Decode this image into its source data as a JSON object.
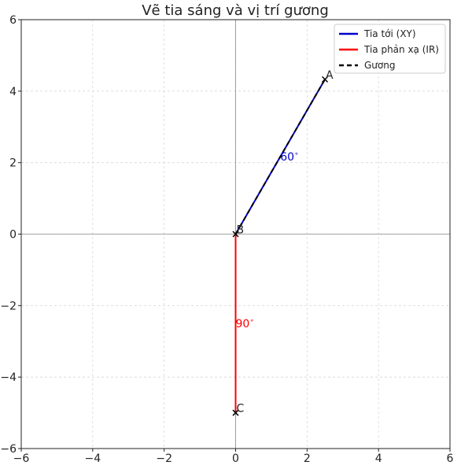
{
  "chart_data": {
    "type": "line",
    "title": "Vẽ tia sáng và vị trí gương",
    "xlabel": "",
    "ylabel": "",
    "xlim": [
      -6,
      6
    ],
    "ylim": [
      -6,
      6
    ],
    "xticks": [
      -6,
      -4,
      -2,
      0,
      2,
      4,
      6
    ],
    "yticks": [
      -6,
      -4,
      -2,
      0,
      2,
      4,
      6
    ],
    "xtick_labels": [
      "−6",
      "−4",
      "−2",
      "0",
      "2",
      "4",
      "6"
    ],
    "ytick_labels": [
      "−6",
      "−4",
      "−2",
      "0",
      "2",
      "4",
      "6"
    ],
    "grid": true,
    "legend_position": "top-right",
    "series": [
      {
        "name": "Tia tới (XY)",
        "color": "#0000cc",
        "style": "solid",
        "x": [
          0,
          2.5
        ],
        "y": [
          0,
          4.33
        ]
      },
      {
        "name": "Tia phản xạ (IR)",
        "color": "#ff0000",
        "style": "solid",
        "x": [
          0,
          0
        ],
        "y": [
          0,
          -5
        ]
      },
      {
        "name": "Gương",
        "color": "#000000",
        "style": "dashed",
        "x": [
          0,
          2.5
        ],
        "y": [
          0,
          4.33
        ]
      }
    ],
    "points": [
      {
        "label": "A",
        "x": 2.5,
        "y": 4.33
      },
      {
        "label": "B",
        "x": 0,
        "y": 0
      },
      {
        "label": "C",
        "x": 0,
        "y": -5
      }
    ],
    "annotations": [
      {
        "text": "60$^\\circ$",
        "x": 1.25,
        "y": 2.17,
        "color": "#0000cc"
      },
      {
        "text": "90$^\\circ$",
        "x": 0,
        "y": -2.5,
        "color": "#ff0000"
      }
    ]
  }
}
